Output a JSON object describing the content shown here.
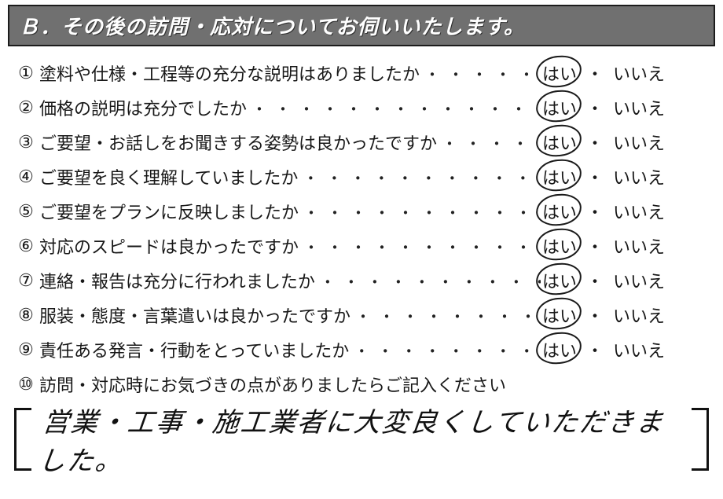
{
  "header": "Ｂ．その後の訪問・応対についてお伺いいたします。",
  "nums": [
    "①",
    "②",
    "③",
    "④",
    "⑤",
    "⑥",
    "⑦",
    "⑧",
    "⑨",
    "⑩"
  ],
  "yes": "はい",
  "no": "いいえ",
  "sep": "・",
  "dots": "・",
  "questions": [
    {
      "text": "塗料や仕様・工程等の充分な説明はありましたか",
      "answer": "yes"
    },
    {
      "text": "価格の説明は充分でしたか",
      "answer": "yes"
    },
    {
      "text": "ご要望・お話しをお聞きする姿勢は良かったですか",
      "answer": "yes"
    },
    {
      "text": "ご要望を良く理解していましたか",
      "answer": "yes"
    },
    {
      "text": "ご要望をプランに反映しましたか",
      "answer": "yes"
    },
    {
      "text": "対応のスピードは良かったですか",
      "answer": "yes"
    },
    {
      "text": "連絡・報告は充分に行われましたか",
      "answer": "yes"
    },
    {
      "text": "服装・態度・言葉遣いは良かったですか",
      "answer": "yes"
    },
    {
      "text": "責任ある発言・行動をとっていましたか",
      "answer": "yes"
    }
  ],
  "question10": "訪問・対応時にお気づきの点がありましたらご記入ください",
  "handwriting": "営業・工事・施工業者に大変良くしていただきました。"
}
